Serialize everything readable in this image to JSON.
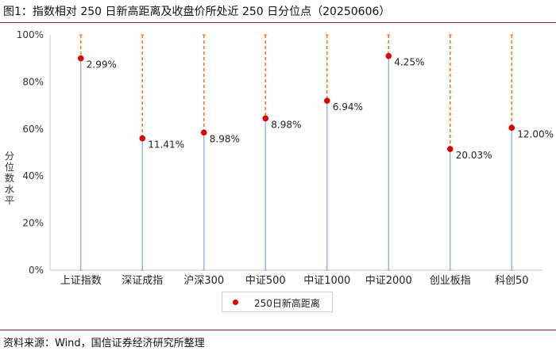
{
  "figure": {
    "title": "图1：指数相对 250 日新高距离及收盘价所处近 250 日分位点（20250606）",
    "source": "资料来源：Wind，国信证券经济研究所整理"
  },
  "chart_data": {
    "type": "scatter",
    "title": "图1：指数相对 250 日新高距离及收盘价所处近 250 日分位点（20250606）",
    "xlabel": "",
    "ylabel": "分位数水平",
    "ylim": [
      0,
      100
    ],
    "y_ticks": [
      "0%",
      "20%",
      "40%",
      "60%",
      "80%",
      "100%"
    ],
    "y_tick_values": [
      0,
      20,
      40,
      60,
      80,
      100
    ],
    "categories": [
      "上证指数",
      "深证成指",
      "沪深300",
      "中证500",
      "中证1000",
      "中证2000",
      "创业板指",
      "科创50"
    ],
    "series": [
      {
        "name": "250日新高距离",
        "values": [
          90,
          56,
          58.5,
          64.5,
          72,
          91,
          51.5,
          60.5
        ],
        "labels": [
          "2.99%",
          "11.41%",
          "8.98%",
          "8.98%",
          "6.94%",
          "4.25%",
          "20.03%",
          "12.00%"
        ]
      }
    ],
    "colors": {
      "point": "#e00000",
      "lower_line": "#8fa9e6",
      "upper_line": "#f07a2a",
      "axis": "#c8c8c8"
    },
    "legend_position": "bottom-center",
    "grid": false
  }
}
